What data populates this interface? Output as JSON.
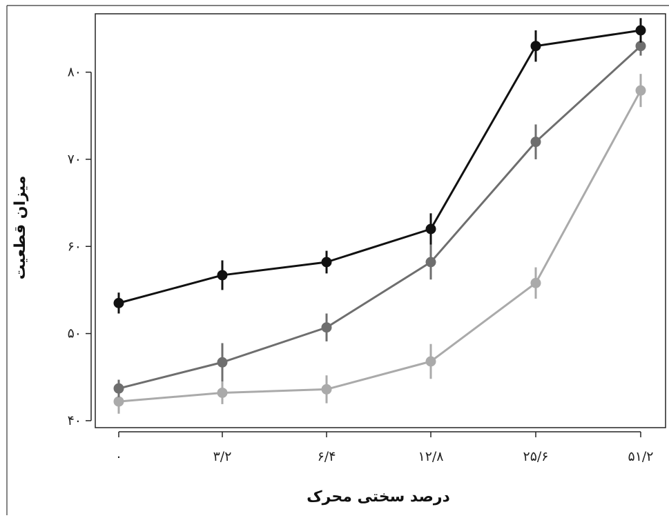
{
  "chart_data": {
    "type": "line",
    "xlabel": "درصد سختی محرک",
    "ylabel": "میزان قطعیت",
    "x_tick_labels": [
      "۰",
      "۳/۲",
      "۶/۴",
      "۱۲/۸",
      "۲۵/۶",
      "۵۱/۲"
    ],
    "x": [
      0,
      3.2,
      6.4,
      12.8,
      25.6,
      51.2
    ],
    "y_ticks": [
      40,
      50,
      60,
      70,
      80
    ],
    "y_tick_labels": [
      "۴۰",
      "۵۰",
      "۶۰",
      "۷۰",
      "۸۰"
    ],
    "ylim": [
      39.2,
      86.7
    ],
    "grid": false,
    "series": [
      {
        "color": "#111111",
        "values": [
          53.5,
          56.7,
          58.2,
          62.0,
          83.0,
          84.8
        ],
        "error": [
          1.2,
          1.7,
          1.3,
          1.8,
          1.8,
          1.4
        ]
      },
      {
        "color": "#6e6e6e",
        "values": [
          43.7,
          46.7,
          50.7,
          58.2,
          72.0,
          83.0
        ],
        "error": [
          1.0,
          2.2,
          1.6,
          2.0,
          2.0,
          1.1
        ]
      },
      {
        "color": "#aaaaaa",
        "values": [
          42.2,
          43.2,
          43.6,
          46.8,
          55.8,
          77.9
        ],
        "error": [
          1.4,
          1.3,
          1.6,
          2.0,
          1.8,
          1.9
        ]
      }
    ]
  }
}
